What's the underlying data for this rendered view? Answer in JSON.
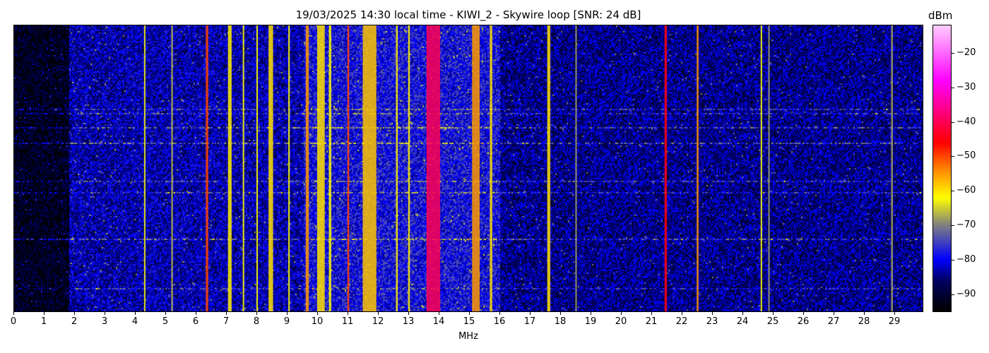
{
  "chart_data": {
    "type": "heatmap",
    "title": "19/03/2025 14:30 local time - KIWI_2 - Skywire loop [SNR: 24 dB]",
    "xlabel": "MHz",
    "ylabel": "",
    "xlim": [
      0,
      30
    ],
    "x_ticks": [
      "0",
      "1",
      "2",
      "3",
      "4",
      "5",
      "6",
      "7",
      "8",
      "9",
      "10",
      "11",
      "12",
      "13",
      "14",
      "15",
      "16",
      "17",
      "18",
      "19",
      "20",
      "21",
      "22",
      "23",
      "24",
      "25",
      "26",
      "27",
      "28",
      "29"
    ],
    "colorbar": {
      "label": "dBm",
      "range": [
        -95,
        -12
      ],
      "ticks": [
        "-20",
        "-30",
        "-40",
        "-50",
        "-60",
        "-70",
        "-80",
        "-90"
      ],
      "colormap_stops": [
        {
          "dbm": -95,
          "color": "#000000"
        },
        {
          "dbm": -86,
          "color": "#000064"
        },
        {
          "dbm": -80,
          "color": "#0000ff"
        },
        {
          "dbm": -70,
          "color": "#808080"
        },
        {
          "dbm": -62,
          "color": "#ffff00"
        },
        {
          "dbm": -55,
          "color": "#ff9900"
        },
        {
          "dbm": -46,
          "color": "#ff0000"
        },
        {
          "dbm": -38,
          "color": "#ff0070"
        },
        {
          "dbm": -28,
          "color": "#ff00ff"
        },
        {
          "dbm": -12,
          "color": "#ffccff"
        }
      ]
    },
    "noise_floor_dbm": [
      {
        "from_mhz": 0,
        "to_mhz": 1.8,
        "level": -92
      },
      {
        "from_mhz": 1.8,
        "to_mhz": 9.5,
        "level": -83
      },
      {
        "from_mhz": 9.5,
        "to_mhz": 16,
        "level": -79
      },
      {
        "from_mhz": 16,
        "to_mhz": 30,
        "level": -85
      }
    ],
    "signals": [
      {
        "mhz": 4.3,
        "width_mhz": 0.05,
        "level": -63
      },
      {
        "mhz": 5.2,
        "width_mhz": 0.05,
        "level": -66
      },
      {
        "mhz": 6.35,
        "width_mhz": 0.08,
        "level": -50
      },
      {
        "mhz": 7.1,
        "width_mhz": 0.12,
        "level": -61
      },
      {
        "mhz": 7.55,
        "width_mhz": 0.05,
        "level": -62
      },
      {
        "mhz": 8.0,
        "width_mhz": 0.05,
        "level": -62
      },
      {
        "mhz": 8.45,
        "width_mhz": 0.15,
        "level": -60
      },
      {
        "mhz": 9.05,
        "width_mhz": 0.05,
        "level": -62
      },
      {
        "mhz": 9.65,
        "width_mhz": 0.1,
        "level": -55
      },
      {
        "mhz": 10.1,
        "width_mhz": 0.25,
        "level": -60
      },
      {
        "mhz": 10.4,
        "width_mhz": 0.08,
        "level": -62
      },
      {
        "mhz": 11.0,
        "width_mhz": 0.06,
        "level": -50
      },
      {
        "mhz": 11.7,
        "width_mhz": 0.45,
        "level": -58
      },
      {
        "mhz": 12.6,
        "width_mhz": 0.06,
        "level": -61
      },
      {
        "mhz": 13.0,
        "width_mhz": 0.06,
        "level": -61
      },
      {
        "mhz": 13.8,
        "width_mhz": 0.45,
        "level": -40
      },
      {
        "mhz": 15.2,
        "width_mhz": 0.25,
        "level": -55
      },
      {
        "mhz": 15.7,
        "width_mhz": 0.08,
        "level": -60
      },
      {
        "mhz": 17.6,
        "width_mhz": 0.1,
        "level": -60
      },
      {
        "mhz": 18.5,
        "width_mhz": 0.05,
        "level": -68
      },
      {
        "mhz": 21.45,
        "width_mhz": 0.08,
        "level": -45
      },
      {
        "mhz": 22.5,
        "width_mhz": 0.06,
        "level": -55
      },
      {
        "mhz": 24.6,
        "width_mhz": 0.05,
        "level": -62
      },
      {
        "mhz": 24.85,
        "width_mhz": 0.05,
        "level": -68
      },
      {
        "mhz": 28.9,
        "width_mhz": 0.06,
        "level": -68
      }
    ]
  }
}
